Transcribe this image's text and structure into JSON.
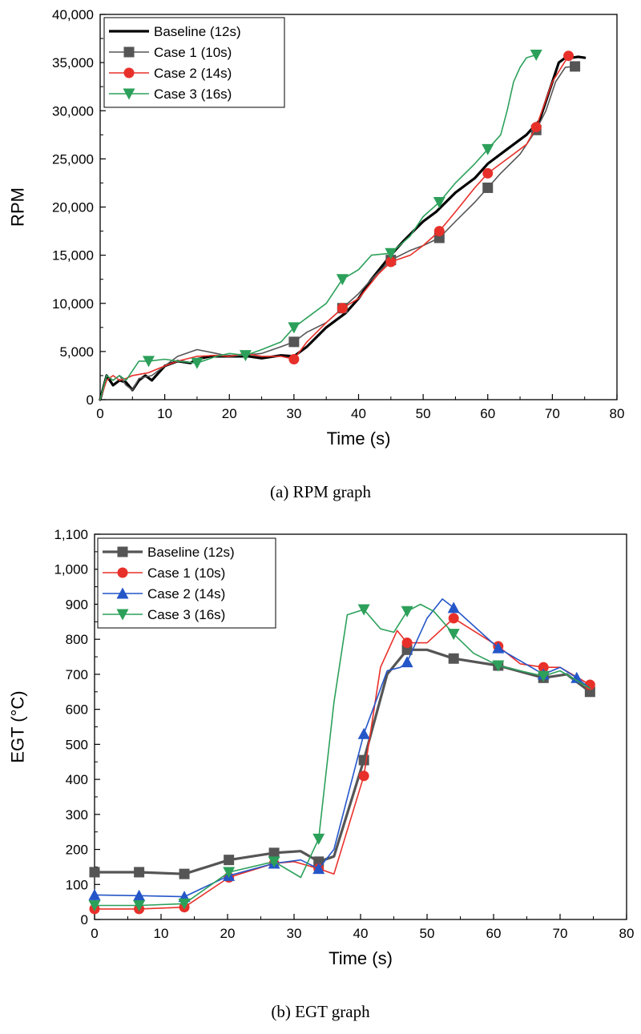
{
  "chart_data": [
    {
      "type": "line",
      "caption": "(a)  RPM  graph",
      "xlabel": "Time (s)",
      "ylabel": "RPM",
      "xlim": [
        0,
        80
      ],
      "ylim": [
        0,
        40000
      ],
      "xticks": [
        0,
        10,
        20,
        30,
        40,
        50,
        60,
        70,
        80
      ],
      "xtick_labels": [
        "0",
        "10",
        "20",
        "30",
        "40",
        "50",
        "60",
        "70",
        "80"
      ],
      "yticks": [
        0,
        5000,
        10000,
        15000,
        20000,
        25000,
        30000,
        35000,
        40000
      ],
      "ytick_labels": [
        "0",
        "5,000",
        "10,000",
        "15,000",
        "20,000",
        "25,000",
        "30,000",
        "35,000",
        "40,000"
      ],
      "grid": false,
      "legend_position": "top-left",
      "series": [
        {
          "name": "Baseline (12s)",
          "color": "#000000",
          "marker": "none",
          "width": 3.2,
          "x": [
            0,
            1,
            2,
            3,
            4,
            5,
            6,
            7,
            8,
            10,
            12,
            14,
            15,
            17,
            20,
            23,
            25,
            28,
            30,
            32,
            35,
            38,
            40,
            42,
            45,
            47,
            50,
            52,
            55,
            58,
            60,
            63,
            66,
            68,
            70,
            71,
            72,
            73,
            74,
            75
          ],
          "y": [
            0,
            2500,
            1500,
            2000,
            1800,
            1000,
            2000,
            2500,
            2000,
            3500,
            4000,
            3800,
            4200,
            4500,
            4500,
            4500,
            4300,
            4600,
            4500,
            5500,
            7500,
            9000,
            10500,
            12500,
            15000,
            16500,
            18500,
            19500,
            21500,
            23000,
            24500,
            26000,
            27500,
            29000,
            33000,
            35000,
            35500,
            35500,
            35600,
            35500
          ],
          "markers_x": []
        },
        {
          "name": "Case 1 (10s)",
          "color": "#555555",
          "marker": "square",
          "width": 1.6,
          "x": [
            0,
            1,
            2,
            3,
            4,
            5,
            6,
            8,
            10,
            12,
            15,
            18,
            20,
            25,
            28,
            30,
            32,
            35,
            37.5,
            40,
            42,
            45,
            48,
            50,
            52.5,
            55,
            58,
            60,
            62,
            65,
            67.5,
            69,
            70.5,
            72,
            73.5
          ],
          "y": [
            0,
            2500,
            2000,
            2500,
            1500,
            1000,
            2200,
            2500,
            3500,
            4500,
            5200,
            4800,
            4500,
            4800,
            5500,
            6000,
            7000,
            8000,
            9500,
            11000,
            12500,
            14500,
            15500,
            16000,
            16800,
            18500,
            20500,
            22000,
            23500,
            25500,
            28000,
            30000,
            33000,
            34500,
            34600
          ],
          "markers_x": [
            30,
            37.5,
            45,
            52.5,
            60,
            67.5,
            73.5
          ]
        },
        {
          "name": "Case 2 (14s)",
          "color": "#e8302a",
          "marker": "circle",
          "width": 1.6,
          "x": [
            0,
            1,
            2,
            3,
            4,
            5,
            7.5,
            10,
            12,
            15,
            18,
            20,
            22.5,
            25,
            28,
            30,
            32,
            35,
            37.5,
            40,
            43,
            45,
            48,
            50,
            52.5,
            55,
            58,
            60,
            63,
            66,
            67.5,
            70,
            72.5
          ],
          "y": [
            0,
            2000,
            2500,
            2000,
            2200,
            2500,
            2800,
            3500,
            4000,
            4500,
            4600,
            4500,
            4800,
            4500,
            4500,
            4200,
            6000,
            8000,
            9500,
            10500,
            13000,
            14300,
            15000,
            16000,
            17500,
            19500,
            22000,
            23500,
            25000,
            26500,
            28300,
            33000,
            35700
          ],
          "markers_x": [
            30,
            37.5,
            45,
            52.5,
            60,
            67.5,
            72.5
          ]
        },
        {
          "name": "Case 3 (16s)",
          "color": "#2ca05a",
          "marker": "triangle-down",
          "width": 1.6,
          "x": [
            0,
            1,
            2,
            3,
            4,
            5,
            6,
            7.5,
            10,
            12,
            15,
            18,
            20,
            22.5,
            25,
            28,
            30,
            32,
            35,
            37.5,
            40,
            42,
            45,
            48,
            50,
            52.5,
            55,
            58,
            60,
            62,
            63,
            64,
            65,
            66,
            67.5
          ],
          "y": [
            0,
            2500,
            2000,
            2500,
            2000,
            3000,
            4000,
            4000,
            4200,
            4000,
            3800,
            4500,
            4800,
            4600,
            5200,
            6000,
            7500,
            8500,
            10000,
            12500,
            13500,
            15000,
            15200,
            17000,
            19000,
            20500,
            22500,
            24500,
            26000,
            27500,
            30000,
            33000,
            34500,
            35500,
            35800
          ],
          "markers_x": [
            7.5,
            15,
            22.5,
            30,
            37.5,
            45,
            52.5,
            60,
            67.5
          ]
        }
      ]
    },
    {
      "type": "line",
      "caption": "(b)  EGT  graph",
      "xlabel": "Time (s)",
      "ylabel": "EGT (°C)",
      "xlim": [
        0,
        80
      ],
      "ylim": [
        0,
        1100
      ],
      "xticks": [
        0,
        10,
        20,
        30,
        40,
        50,
        60,
        70,
        80
      ],
      "xtick_labels": [
        "0",
        "10",
        "20",
        "30",
        "40",
        "50",
        "60",
        "70",
        "80"
      ],
      "yticks": [
        0,
        100,
        200,
        300,
        400,
        500,
        600,
        700,
        800,
        900,
        1000,
        1100
      ],
      "ytick_labels": [
        "0",
        "100",
        "200",
        "300",
        "400",
        "500",
        "600",
        "700",
        "800",
        "900",
        "1,000",
        "1,100"
      ],
      "grid": false,
      "legend_position": "top-left",
      "series": [
        {
          "name": "Baseline (12s)",
          "color": "#555555",
          "marker": "square",
          "width": 3.2,
          "x": [
            0,
            6.7,
            13.5,
            20.2,
            27,
            31,
            33.7,
            36,
            40.5,
            44,
            47,
            50,
            54,
            60.7,
            67.5,
            71,
            74.5
          ],
          "y": [
            135,
            135,
            130,
            170,
            190,
            195,
            165,
            180,
            455,
            700,
            770,
            770,
            745,
            725,
            690,
            700,
            650
          ],
          "markers_x": [
            0,
            6.7,
            13.5,
            20.2,
            27,
            33.7,
            40.5,
            47,
            54,
            60.7,
            67.5,
            74.5
          ]
        },
        {
          "name": "Case 1 (10s)",
          "color": "#e8302a",
          "marker": "circle",
          "width": 1.6,
          "x": [
            0,
            6.7,
            13.5,
            20.2,
            27,
            30,
            33.7,
            36,
            40.5,
            43,
            45.5,
            47,
            50,
            54,
            60.7,
            64,
            67.5,
            70,
            74.5
          ],
          "y": [
            30,
            30,
            35,
            120,
            160,
            165,
            145,
            130,
            410,
            720,
            825,
            790,
            790,
            860,
            780,
            730,
            720,
            720,
            670
          ],
          "markers_x": [
            0,
            6.7,
            13.5,
            20.2,
            27,
            33.7,
            40.5,
            47,
            54,
            60.7,
            67.5,
            74.5
          ]
        },
        {
          "name": "Case 2 (14s)",
          "color": "#2456c8",
          "marker": "triangle-up",
          "width": 1.6,
          "x": [
            0,
            6.7,
            13.5,
            20.2,
            27,
            31,
            33.7,
            36,
            40.5,
            44,
            46,
            47,
            50,
            52.3,
            54,
            60.7,
            67.5,
            70,
            72.5,
            74.5
          ],
          "y": [
            70,
            68,
            65,
            125,
            160,
            170,
            145,
            200,
            530,
            710,
            720,
            735,
            860,
            915,
            890,
            775,
            700,
            720,
            690,
            660
          ],
          "markers_x": [
            0,
            6.7,
            13.5,
            20.2,
            27,
            33.7,
            40.5,
            47,
            54,
            60.7,
            67.5,
            72.5
          ]
        },
        {
          "name": "Case 3 (16s)",
          "color": "#2ca05a",
          "marker": "triangle-down",
          "width": 1.6,
          "x": [
            0,
            6.7,
            13.5,
            20.2,
            27,
            31,
            33.7,
            36,
            38,
            40.5,
            43,
            45,
            47,
            49,
            51,
            54,
            57,
            60.7,
            64,
            67.5,
            70,
            74.5
          ],
          "y": [
            40,
            40,
            45,
            135,
            165,
            120,
            230,
            620,
            870,
            885,
            830,
            820,
            880,
            900,
            880,
            815,
            760,
            725,
            710,
            695,
            710,
            660
          ],
          "markers_x": [
            0,
            6.7,
            13.5,
            20.2,
            27,
            33.7,
            40.5,
            47,
            54,
            60.7,
            67.5
          ]
        }
      ]
    }
  ]
}
